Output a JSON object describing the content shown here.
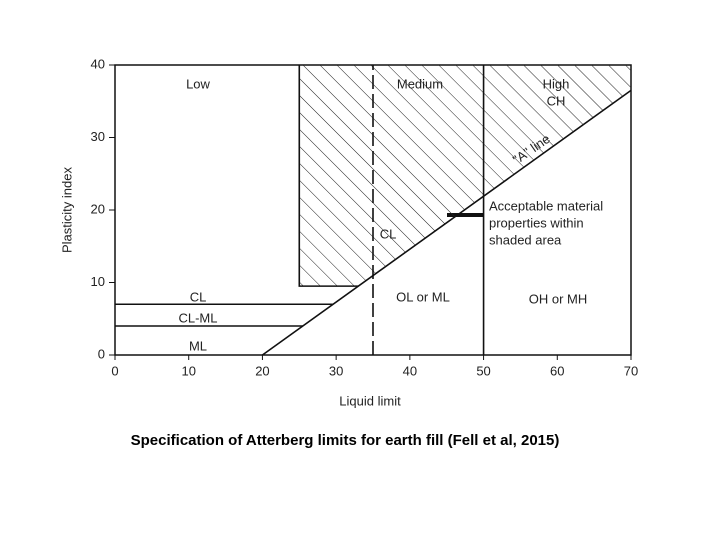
{
  "chart_data": {
    "type": "line",
    "xlabel": "Liquid limit",
    "ylabel": "Plasticity index",
    "xlim": [
      0,
      70
    ],
    "ylim": [
      0,
      40
    ],
    "xticks": [
      0,
      10,
      20,
      30,
      40,
      50,
      60,
      70
    ],
    "yticks": [
      0,
      10,
      20,
      30,
      40
    ],
    "color": "#111",
    "series": [
      {
        "name": "\"A\" line",
        "color": "#111",
        "x": [
          20,
          70
        ],
        "values": [
          0,
          36.5
        ]
      },
      {
        "color": "#111",
        "dashed": true,
        "x": [
          35,
          35
        ],
        "values": [
          0,
          40
        ]
      },
      {
        "color": "#111",
        "x": [
          50,
          50
        ],
        "values": [
          0,
          40
        ]
      },
      {
        "color": "#111",
        "x": [
          33,
          25,
          25
        ],
        "values": [
          9.5,
          9.5,
          40
        ]
      },
      {
        "color": "#111",
        "x": [
          0,
          29.6
        ],
        "values": [
          7,
          7
        ]
      },
      {
        "color": "#111",
        "x": [
          0,
          25.5
        ],
        "values": [
          4,
          4
        ]
      }
    ],
    "shaded": {
      "x": [
        25,
        25,
        70,
        70,
        33
      ],
      "values": [
        9.5,
        40,
        40,
        36.5,
        9.5
      ]
    },
    "annotations": [
      "Low",
      "Medium",
      "High",
      "CH",
      "CL",
      "Acceptable material",
      "properties within",
      "shaded area",
      "OL or ML",
      "OH or MH",
      "CL",
      "CL-ML",
      "ML"
    ]
  },
  "caption": "Specification of Atterberg limits for earth fill (Fell et al, 2015)"
}
